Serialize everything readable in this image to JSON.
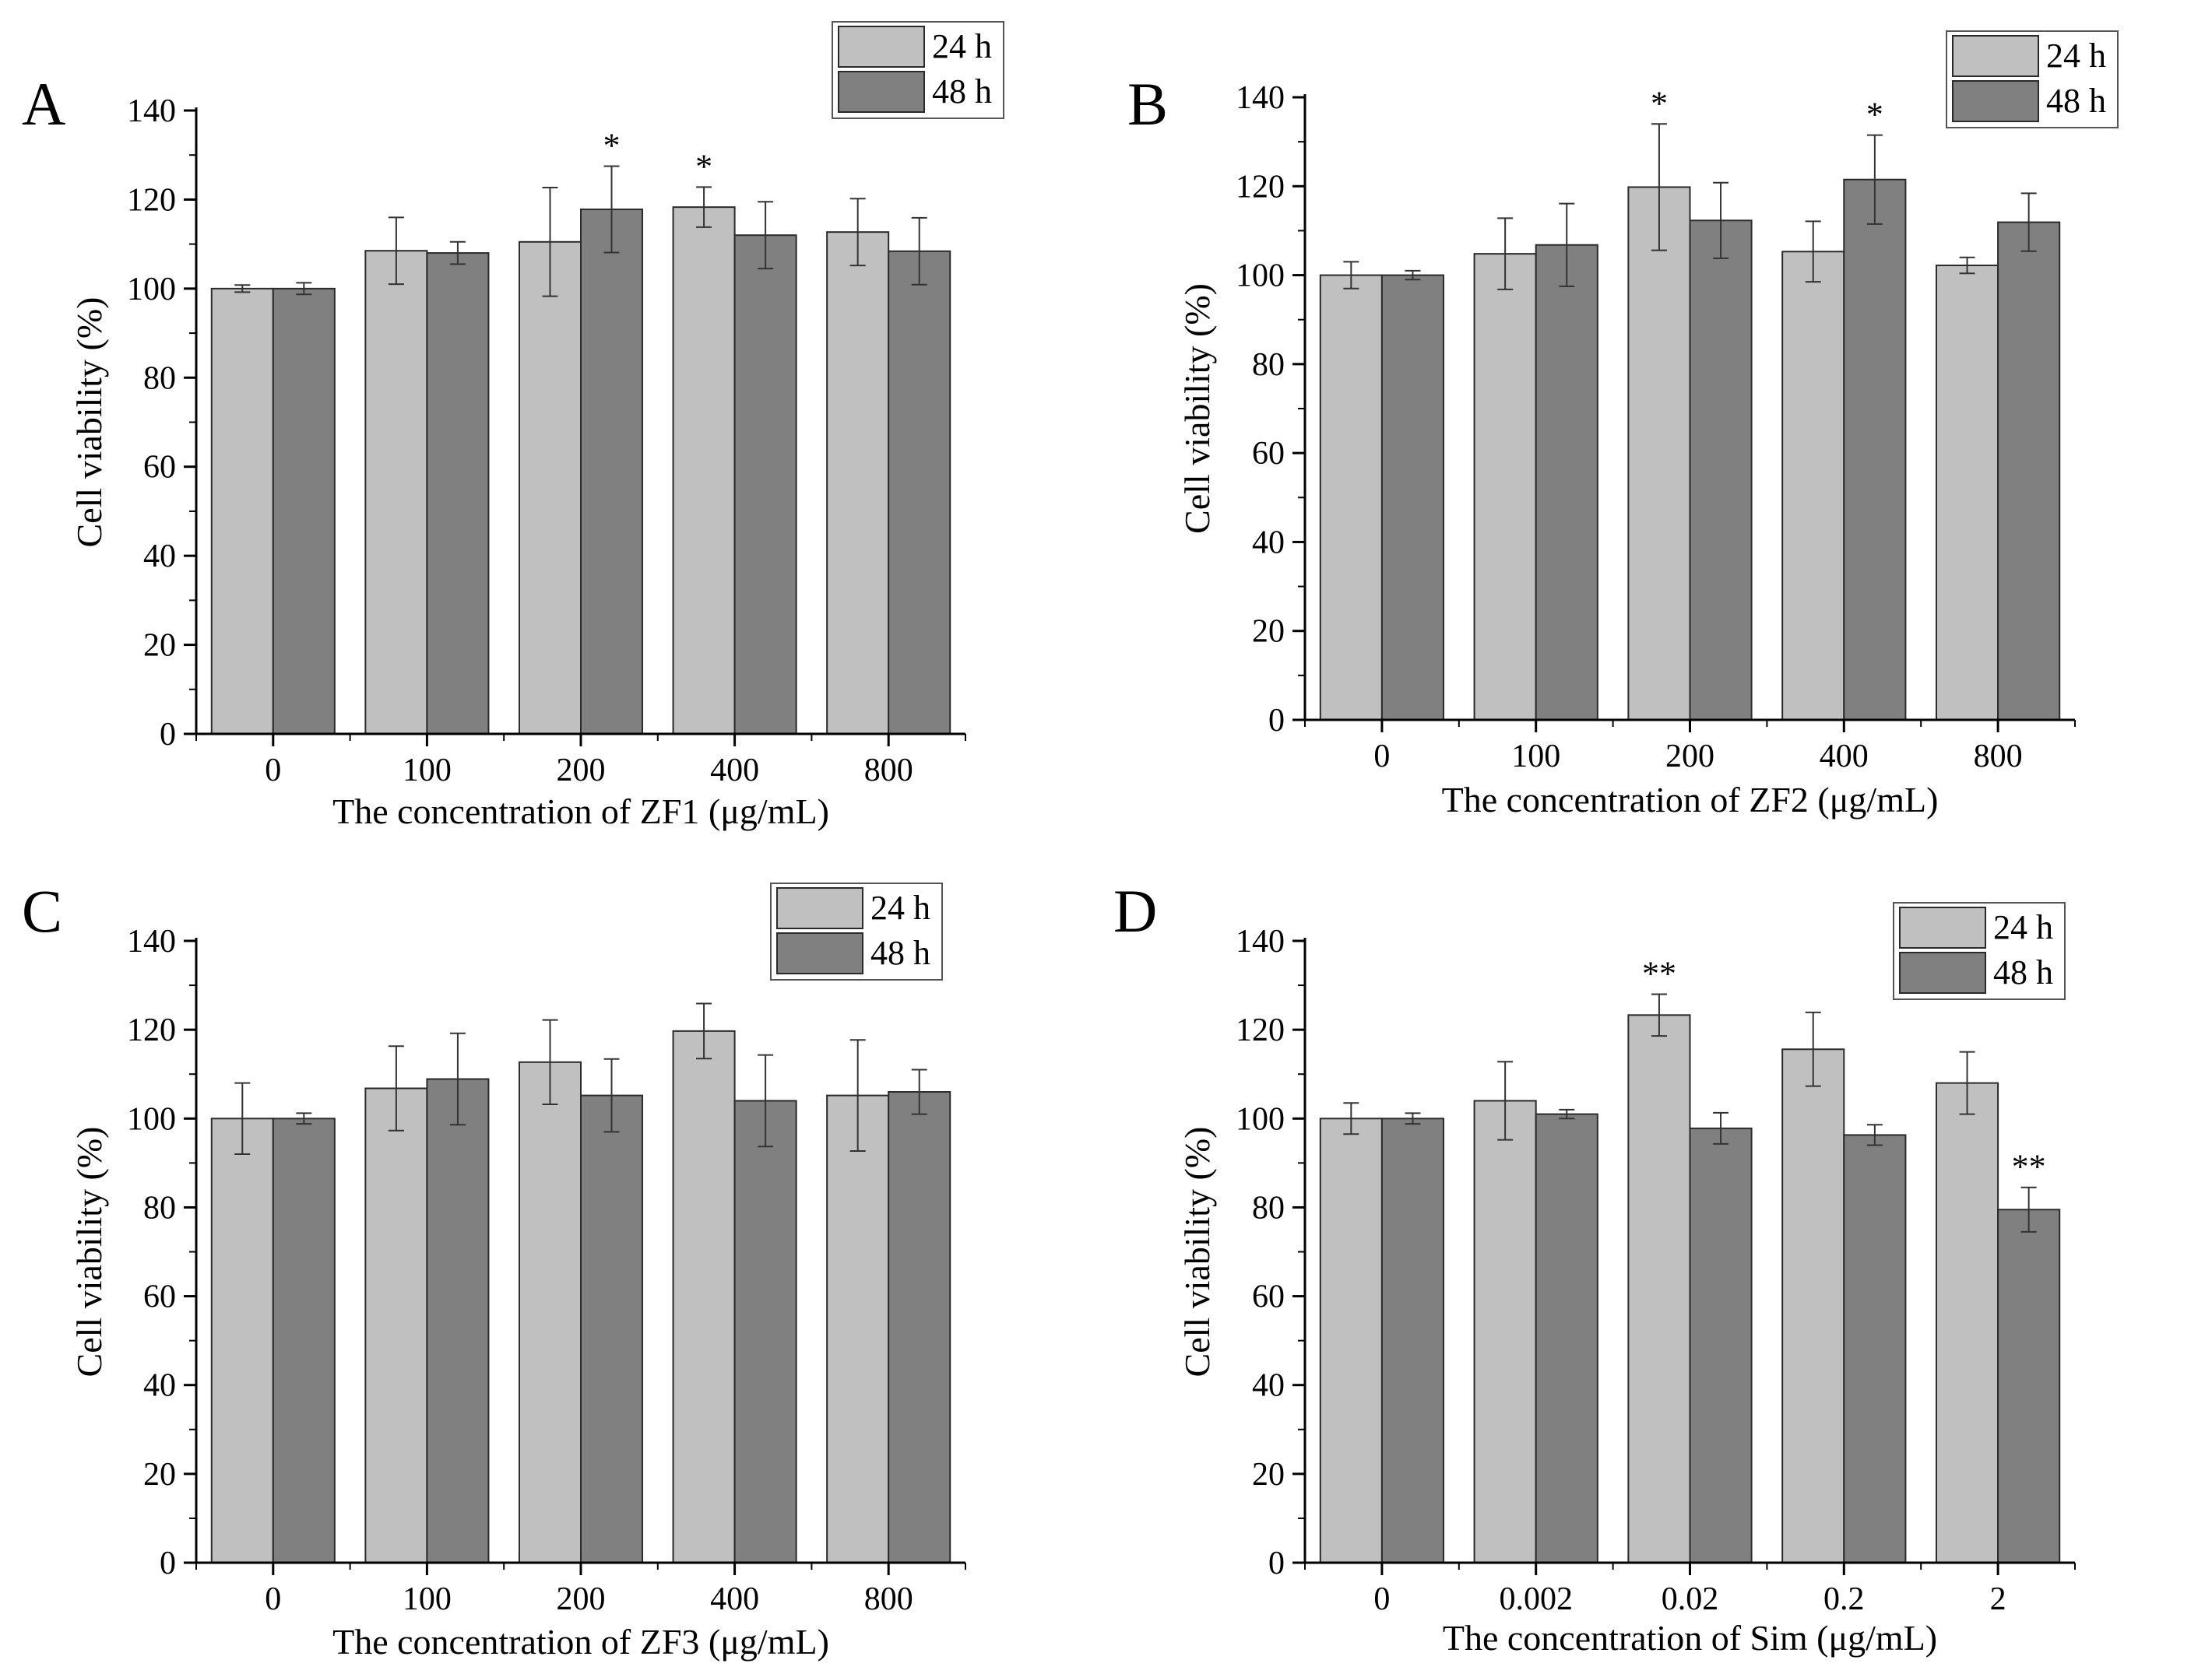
{
  "figure": {
    "panels": [
      {
        "letter": "A",
        "legend": [
          "24 h",
          "48 h"
        ],
        "chart_data": {
          "type": "bar",
          "categories": [
            "0",
            "100",
            "200",
            "400",
            "800"
          ],
          "xlabel": "The concentration of ZF1 (μg/mL)",
          "ylabel": "Cell viability (%)",
          "ylim": [
            0,
            140
          ],
          "yticks": [
            "0",
            "20",
            "40",
            "60",
            "80",
            "100",
            "120",
            "140"
          ],
          "legend_position": "top-right",
          "grid": false,
          "series": [
            {
              "name": "24 h",
              "color": "#c0c0c0",
              "values": [
                100,
                108.5,
                110.5,
                118.3,
                112.7
              ],
              "errors": [
                0.8,
                7.5,
                12.2,
                4.5,
                7.5
              ],
              "markers": [
                "",
                "",
                "",
                "*",
                ""
              ]
            },
            {
              "name": "48 h",
              "color": "#808080",
              "values": [
                100,
                108,
                117.8,
                112,
                108.4
              ],
              "errors": [
                1.3,
                2.5,
                9.7,
                7.5,
                7.5
              ],
              "markers": [
                "",
                "",
                "*",
                "",
                ""
              ]
            }
          ]
        }
      },
      {
        "letter": "B",
        "legend": [
          "24 h",
          "48 h"
        ],
        "chart_data": {
          "type": "bar",
          "categories": [
            "0",
            "100",
            "200",
            "400",
            "800"
          ],
          "xlabel": "The concentration of ZF2 (μg/mL)",
          "ylabel": "Cell viability (%)",
          "ylim": [
            0,
            140
          ],
          "yticks": [
            "0",
            "20",
            "40",
            "60",
            "80",
            "100",
            "120",
            "140"
          ],
          "legend_position": "top-right",
          "grid": false,
          "series": [
            {
              "name": "24 h",
              "color": "#c0c0c0",
              "values": [
                100,
                104.8,
                119.8,
                105.3,
                102.2
              ],
              "errors": [
                3,
                8,
                14.2,
                6.8,
                1.8
              ],
              "markers": [
                "",
                "",
                "*",
                "",
                ""
              ]
            },
            {
              "name": "48 h",
              "color": "#808080",
              "values": [
                100,
                106.8,
                112.3,
                121.5,
                111.9
              ],
              "errors": [
                1,
                9.3,
                8.5,
                10,
                6.5
              ],
              "markers": [
                "",
                "",
                "",
                "*",
                ""
              ]
            }
          ]
        }
      },
      {
        "letter": "C",
        "legend": [
          "24 h",
          "48 h"
        ],
        "chart_data": {
          "type": "bar",
          "categories": [
            "0",
            "100",
            "200",
            "400",
            "800"
          ],
          "xlabel": "The concentration of ZF3 (μg/mL)",
          "ylabel": "Cell viability (%)",
          "ylim": [
            0,
            140
          ],
          "yticks": [
            "0",
            "20",
            "40",
            "60",
            "80",
            "100",
            "120",
            "140"
          ],
          "legend_position": "top-right",
          "grid": false,
          "series": [
            {
              "name": "24 h",
              "color": "#c0c0c0",
              "values": [
                100,
                106.8,
                112.7,
                119.7,
                105.2
              ],
              "errors": [
                8,
                9.5,
                9.5,
                6.2,
                12.5
              ],
              "markers": [
                "",
                "",
                "",
                "",
                ""
              ]
            },
            {
              "name": "48 h",
              "color": "#808080",
              "values": [
                100,
                108.9,
                105.2,
                104,
                106
              ],
              "errors": [
                1.2,
                10.3,
                8.2,
                10.3,
                5
              ],
              "markers": [
                "",
                "",
                "",
                "",
                ""
              ]
            }
          ]
        }
      },
      {
        "letter": "D",
        "legend": [
          "24 h",
          "48 h"
        ],
        "chart_data": {
          "type": "bar",
          "categories": [
            "0",
            "0.002",
            "0.02",
            "0.2",
            "2"
          ],
          "xlabel": "The concentration of Sim (μg/mL)",
          "ylabel": "Cell viability (%)",
          "ylim": [
            0,
            140
          ],
          "yticks": [
            "0",
            "20",
            "40",
            "60",
            "80",
            "100",
            "120",
            "140"
          ],
          "legend_position": "top-right",
          "grid": false,
          "series": [
            {
              "name": "24 h",
              "color": "#c0c0c0",
              "values": [
                100,
                104,
                123.3,
                115.6,
                108
              ],
              "errors": [
                3.5,
                8.8,
                4.7,
                8.3,
                7
              ],
              "markers": [
                "",
                "",
                "**",
                "",
                ""
              ]
            },
            {
              "name": "48 h",
              "color": "#808080",
              "values": [
                100,
                101,
                97.8,
                96.3,
                79.5
              ],
              "errors": [
                1.2,
                1,
                3.5,
                2.3,
                5
              ],
              "markers": [
                "",
                "",
                "",
                "",
                "**"
              ]
            }
          ]
        }
      }
    ]
  }
}
